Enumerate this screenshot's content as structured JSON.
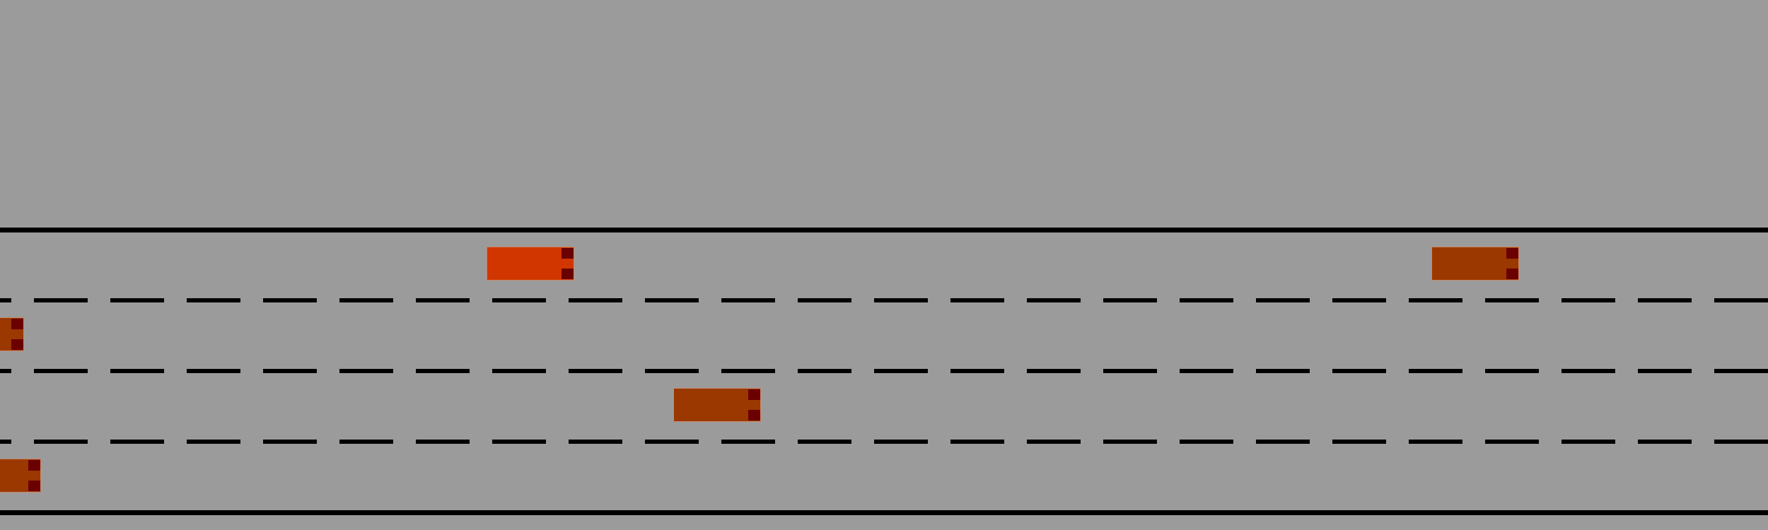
{
  "scene": {
    "background_color": "#9b9b9b",
    "road_line_color": "#000000",
    "lane_count": 4
  },
  "colors": {
    "ego_vehicle": "#d23600",
    "other_vehicle": "#9a3800",
    "vehicle_light": "#6b0000"
  },
  "vehicles": [
    {
      "role": "ego",
      "lane": 1
    },
    {
      "role": "other",
      "lane": 1
    },
    {
      "role": "other",
      "lane": 2
    },
    {
      "role": "other",
      "lane": 3
    },
    {
      "role": "other",
      "lane": 4
    }
  ]
}
